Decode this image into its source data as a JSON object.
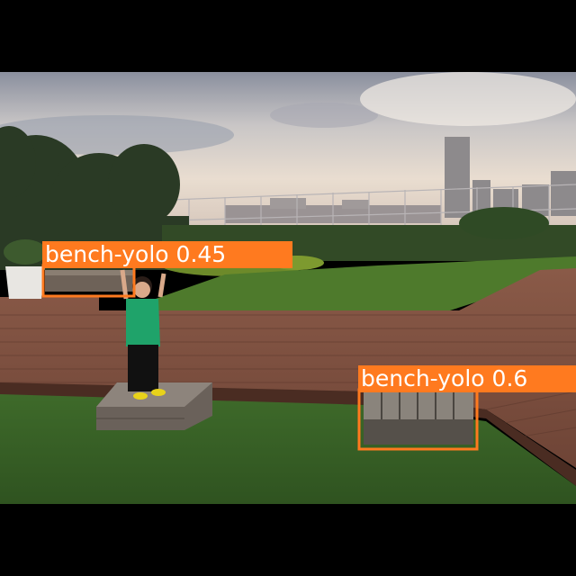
{
  "image": {
    "description_name": "rooftop garden photo with object detection overlays",
    "box_color": "#ff7a1f",
    "label_text_color": "#ffffff"
  },
  "detections": [
    {
      "class": "bench-yolo",
      "confidence": "0.45",
      "label": "bench-yolo 0.45"
    },
    {
      "class": "bench-yolo",
      "confidence": "0.6",
      "label": "bench-yolo 0.6"
    }
  ]
}
